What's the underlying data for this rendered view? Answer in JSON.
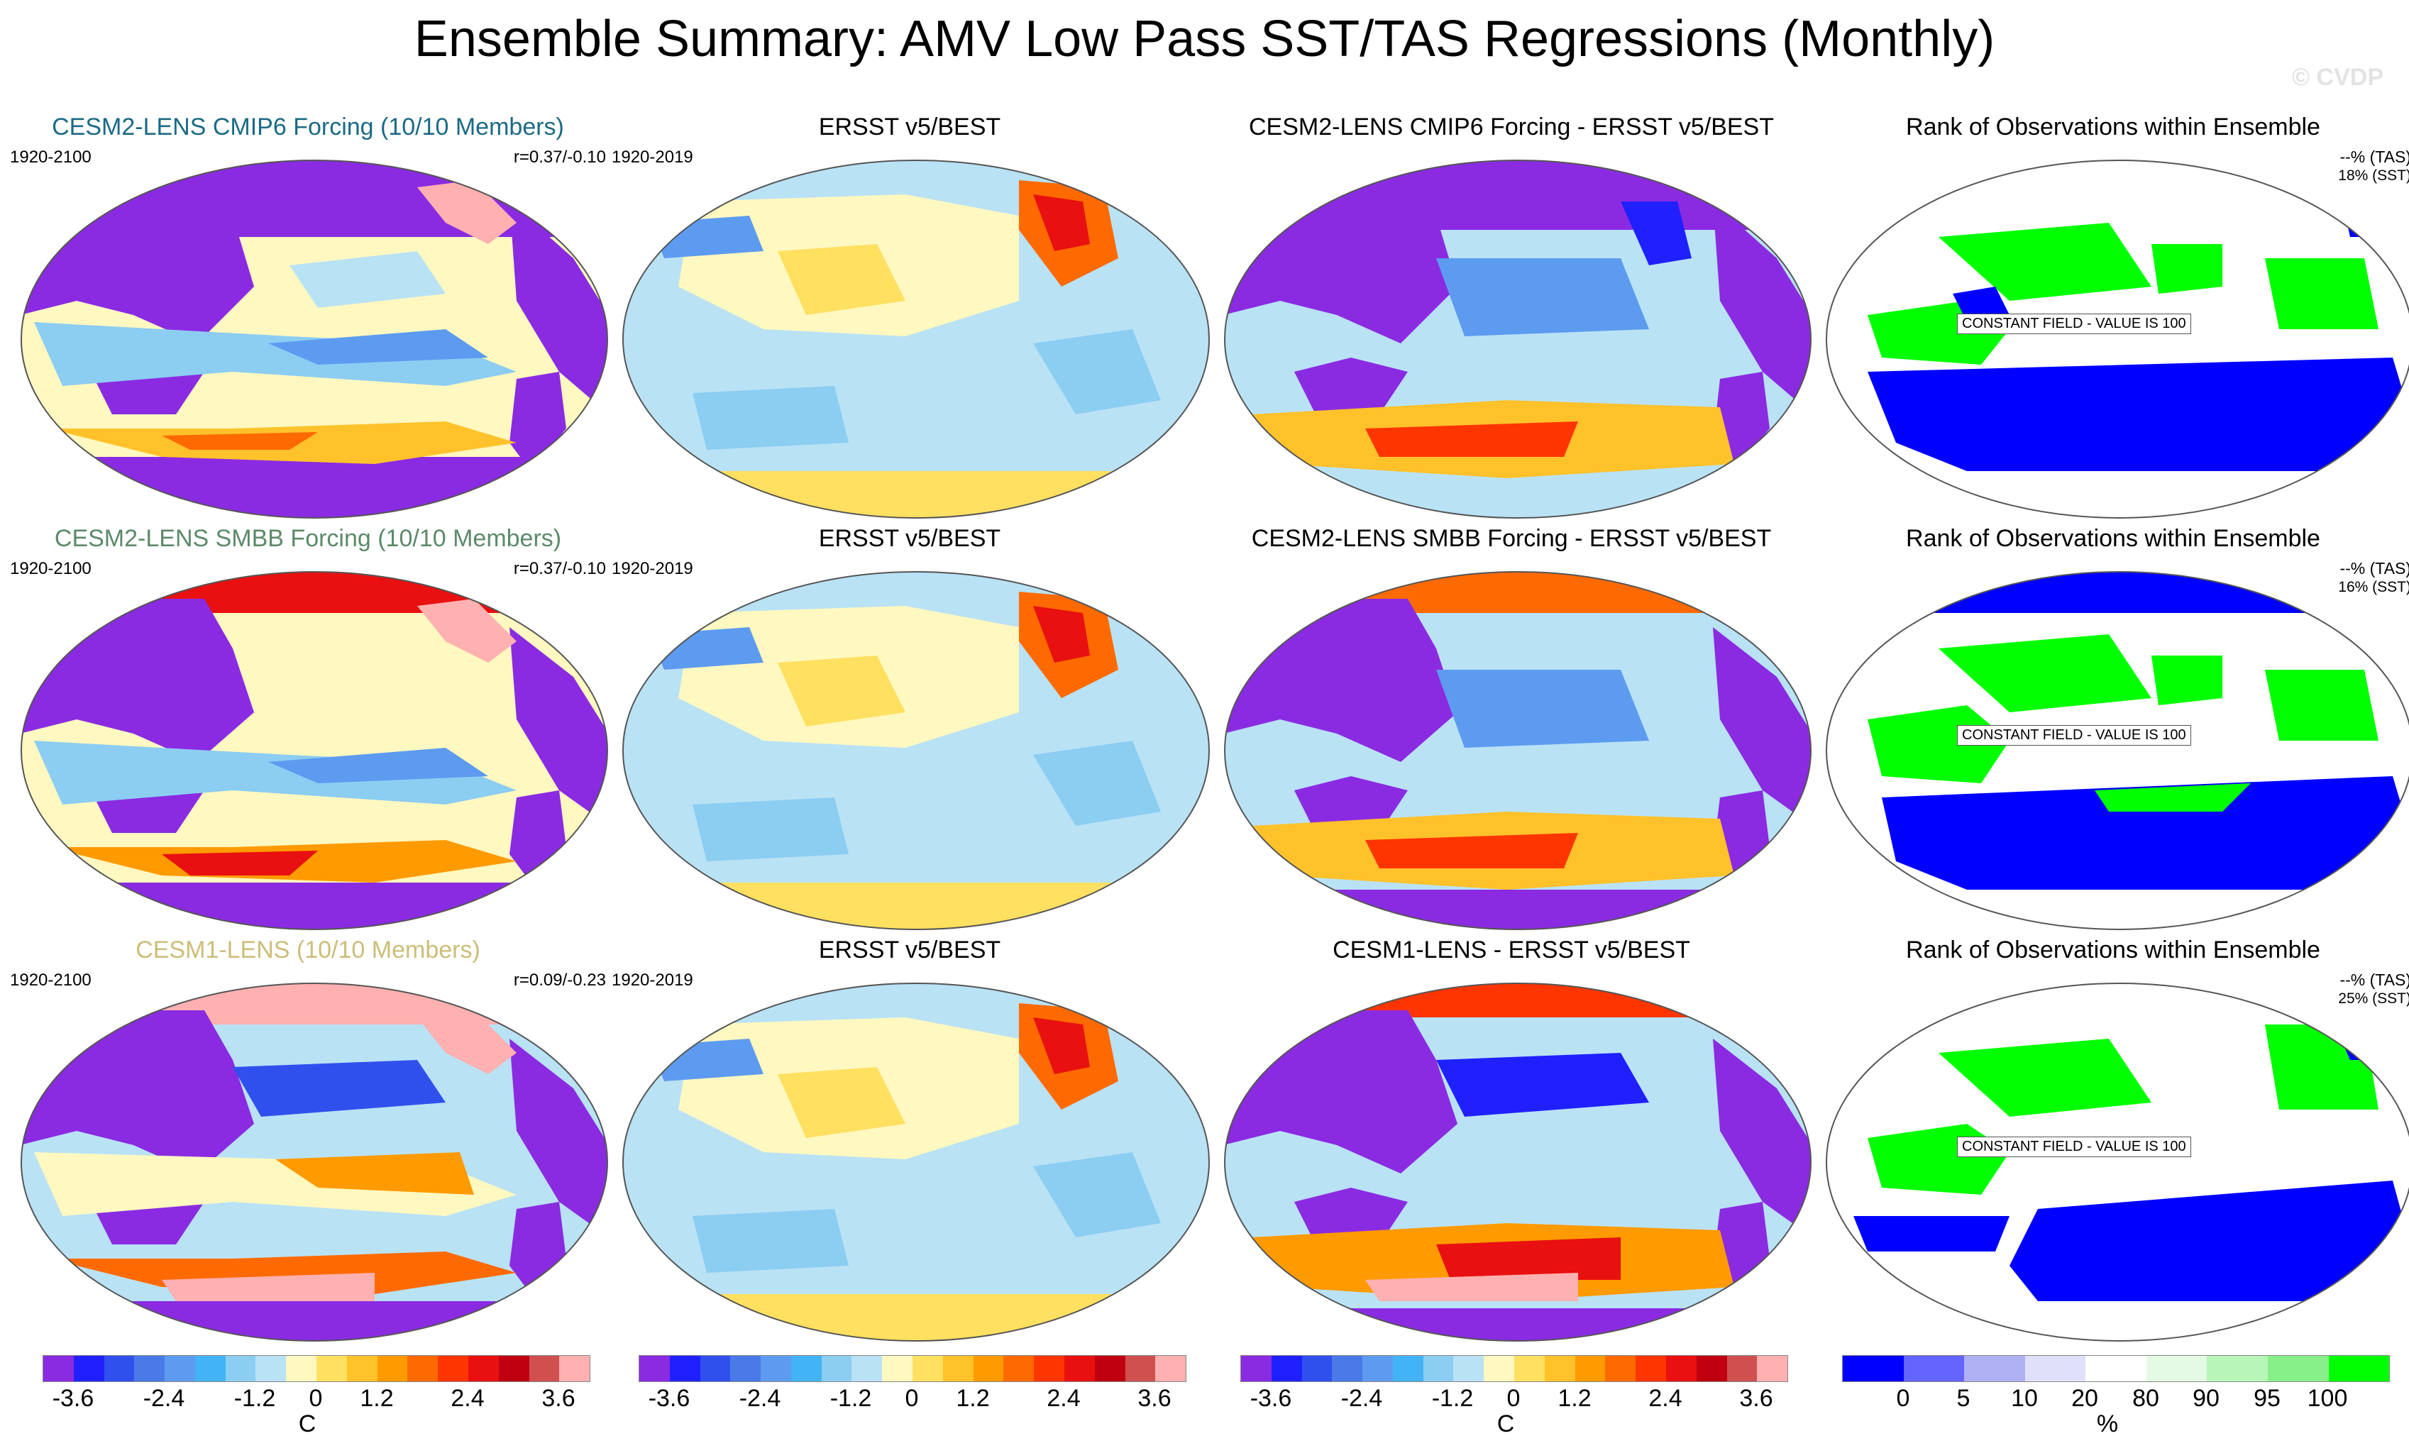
{
  "header": {
    "title": "Ensemble Summary: AMV Low Pass SST/TAS Regressions (Monthly)",
    "watermark": "© CVDP"
  },
  "rows": [
    {
      "model": {
        "title": "CESM2-LENS CMIP6 Forcing (10/10 Members)",
        "years": "1920-2100",
        "r": "r=0.37/-0.10"
      },
      "obs": {
        "title": "ERSST v5/BEST",
        "years": "1920-2019"
      },
      "diff": {
        "title": "CESM2-LENS CMIP6 Forcing - ERSST v5/BEST"
      },
      "rank": {
        "title": "Rank of Observations within Ensemble",
        "tas": "--% (TAS)",
        "sst": "18% (SST)",
        "note": "CONSTANT FIELD - VALUE IS 100"
      }
    },
    {
      "model": {
        "title": "CESM2-LENS SMBB Forcing (10/10 Members)",
        "years": "1920-2100",
        "r": "r=0.37/-0.10"
      },
      "obs": {
        "title": "ERSST v5/BEST",
        "years": "1920-2019"
      },
      "diff": {
        "title": "CESM2-LENS SMBB Forcing - ERSST v5/BEST"
      },
      "rank": {
        "title": "Rank of Observations within Ensemble",
        "tas": "--% (TAS)",
        "sst": "16% (SST)",
        "note": "CONSTANT FIELD - VALUE IS 100"
      }
    },
    {
      "model": {
        "title": "CESM1-LENS (10/10 Members)",
        "years": "1920-2100",
        "r": "r=0.09/-0.23"
      },
      "obs": {
        "title": "ERSST v5/BEST",
        "years": "1920-2019"
      },
      "diff": {
        "title": "CESM1-LENS - ERSST v5/BEST"
      },
      "rank": {
        "title": "Rank of Observations within Ensemble",
        "tas": "--% (TAS)",
        "sst": "25% (SST)",
        "note": "CONSTANT FIELD - VALUE IS 100"
      }
    }
  ],
  "colorbars": {
    "temp": {
      "labels": [
        "-3.6",
        "-2.4",
        "-1.2",
        "0",
        "1.2",
        "2.4",
        "3.6"
      ],
      "unit": "C",
      "colors": [
        "#8a2be2",
        "#2020ff",
        "#3050ee",
        "#4a7ae8",
        "#5d9bf0",
        "#42b3f5",
        "#8ccdf2",
        "#b9e2f5",
        "#fff8c0",
        "#ffe060",
        "#ffc22a",
        "#ff9a00",
        "#ff6a00",
        "#ff3500",
        "#e81010",
        "#c00010",
        "#d05050",
        "#ffb0b0"
      ]
    },
    "rank": {
      "labels": [
        "0",
        "5",
        "10",
        "20",
        "80",
        "90",
        "95",
        "100"
      ],
      "unit": "%",
      "colors": [
        "#0000ff",
        "#6464ff",
        "#b0b0f5",
        "#e0e0fa",
        "#ffffff",
        "#e4fae4",
        "#b8f5b8",
        "#88f088",
        "#00ff00"
      ]
    }
  }
}
